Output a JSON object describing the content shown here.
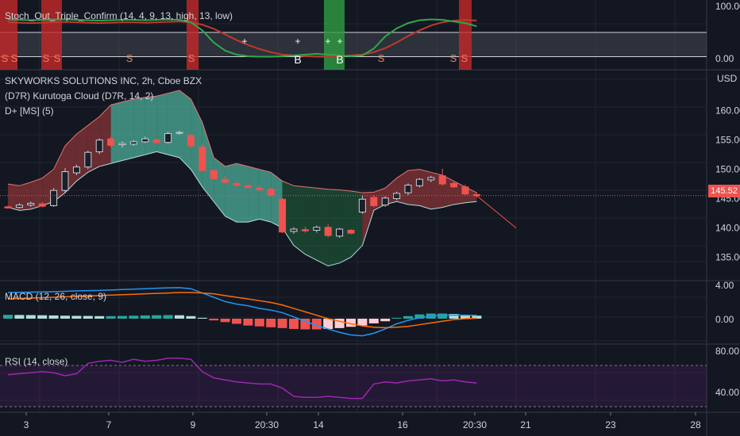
{
  "colors": {
    "background": "#131722",
    "grid": "#1f2430",
    "up": "#26a69a",
    "down": "#ef5350",
    "stoch_k": "#2ea84a",
    "stoch_d": "#c0392b",
    "macd_line": "#2196f3",
    "signal_line": "#ff6d00",
    "rsi": "#9c27b0",
    "cloud_bull": "#4caf99",
    "cloud_bear": "#a33a3a"
  },
  "main": {
    "title": "SKYWORKS SOLUTIONS INC, 2h, Cboe BZX",
    "indicator_1": "(D7R) Kurutoga Cloud (D7R, 14, 2)",
    "indicator_2": "D+ [MS] (5)",
    "currency": "USD",
    "last_price": "145.52"
  },
  "stoch_panel": {
    "title": "Stoch_Out_Triple_Confirm (14, 4, 9, 13, high, 13, low)",
    "y_ticks": [
      "100.00",
      "0.00"
    ],
    "sell_marks": [
      "S",
      "S",
      "S",
      "S",
      "S",
      "S",
      "S",
      "S",
      "S"
    ],
    "buy_marks": [
      "B",
      "B"
    ]
  },
  "macd_panel": {
    "title": "MACD (12, 26, close, 9)",
    "y_ticks": [
      "4.00",
      "0.00"
    ]
  },
  "rsi_panel": {
    "title": "RSI (14, close)",
    "y_ticks": [
      "80.00",
      "40.00"
    ]
  },
  "chart_data": {
    "type": "candlestick",
    "title": "SKYWORKS SOLUTIONS INC, 2h, Cboe BZX",
    "y_unit": "USD",
    "ylim": [
      131,
      167
    ],
    "y_ticks": [
      160,
      155,
      150,
      145,
      140,
      135
    ],
    "x_ticks": [
      "3",
      "7",
      "9",
      "20:30",
      "14",
      "16",
      "20:30",
      "21",
      "23",
      "28"
    ],
    "candles": [
      {
        "o": 143.6,
        "h": 143.8,
        "l": 143.3,
        "c": 143.4
      },
      {
        "o": 143.5,
        "h": 144.2,
        "l": 143.3,
        "c": 143.9
      },
      {
        "o": 143.9,
        "h": 144.5,
        "l": 143.6,
        "c": 144.2
      },
      {
        "o": 144.1,
        "h": 144.4,
        "l": 143.5,
        "c": 143.7
      },
      {
        "o": 143.8,
        "h": 146.8,
        "l": 143.6,
        "c": 146.4
      },
      {
        "o": 146.4,
        "h": 150.2,
        "l": 146.0,
        "c": 149.6
      },
      {
        "o": 149.4,
        "h": 150.8,
        "l": 149.0,
        "c": 150.4
      },
      {
        "o": 150.4,
        "h": 153.2,
        "l": 150.0,
        "c": 152.9
      },
      {
        "o": 153.0,
        "h": 155.3,
        "l": 152.6,
        "c": 155.0
      },
      {
        "o": 155.2,
        "h": 155.6,
        "l": 153.8,
        "c": 154.1
      },
      {
        "o": 154.2,
        "h": 154.8,
        "l": 153.7,
        "c": 154.4
      },
      {
        "o": 154.3,
        "h": 155.0,
        "l": 154.0,
        "c": 154.7
      },
      {
        "o": 154.7,
        "h": 155.6,
        "l": 154.5,
        "c": 155.2
      },
      {
        "o": 155.0,
        "h": 155.3,
        "l": 154.3,
        "c": 154.6
      },
      {
        "o": 154.6,
        "h": 156.4,
        "l": 154.4,
        "c": 156.1
      },
      {
        "o": 156.2,
        "h": 156.6,
        "l": 155.9,
        "c": 156.3
      },
      {
        "o": 155.8,
        "h": 156.0,
        "l": 153.7,
        "c": 154.0
      },
      {
        "o": 153.8,
        "h": 154.3,
        "l": 149.6,
        "c": 149.8
      },
      {
        "o": 149.8,
        "h": 150.0,
        "l": 148.2,
        "c": 148.4
      },
      {
        "o": 148.3,
        "h": 148.9,
        "l": 147.5,
        "c": 147.8
      },
      {
        "o": 147.6,
        "h": 148.0,
        "l": 147.0,
        "c": 147.3
      },
      {
        "o": 147.2,
        "h": 147.6,
        "l": 146.6,
        "c": 146.9
      },
      {
        "o": 146.8,
        "h": 147.3,
        "l": 146.2,
        "c": 146.5
      },
      {
        "o": 146.6,
        "h": 146.9,
        "l": 145.4,
        "c": 145.6
      },
      {
        "o": 144.9,
        "h": 145.1,
        "l": 139.1,
        "c": 139.3
      },
      {
        "o": 139.4,
        "h": 140.1,
        "l": 139.0,
        "c": 139.8
      },
      {
        "o": 139.7,
        "h": 140.2,
        "l": 139.2,
        "c": 139.5
      },
      {
        "o": 139.6,
        "h": 140.4,
        "l": 139.2,
        "c": 140.1
      },
      {
        "o": 140.1,
        "h": 140.6,
        "l": 138.4,
        "c": 138.7
      },
      {
        "o": 138.6,
        "h": 140.0,
        "l": 138.3,
        "c": 139.8
      },
      {
        "o": 139.6,
        "h": 139.8,
        "l": 138.9,
        "c": 139.1
      },
      {
        "o": 142.7,
        "h": 145.6,
        "l": 142.4,
        "c": 144.9
      },
      {
        "o": 145.2,
        "h": 145.6,
        "l": 143.5,
        "c": 143.8
      },
      {
        "o": 143.9,
        "h": 145.4,
        "l": 143.6,
        "c": 145.1
      },
      {
        "o": 145.0,
        "h": 146.2,
        "l": 144.7,
        "c": 145.9
      },
      {
        "o": 146.0,
        "h": 147.6,
        "l": 145.6,
        "c": 147.3
      },
      {
        "o": 147.2,
        "h": 148.5,
        "l": 146.9,
        "c": 148.3
      },
      {
        "o": 148.2,
        "h": 148.9,
        "l": 147.8,
        "c": 148.6
      },
      {
        "o": 148.9,
        "h": 150.1,
        "l": 147.2,
        "c": 147.5
      },
      {
        "o": 147.6,
        "h": 148.0,
        "l": 146.8,
        "c": 147.0
      },
      {
        "o": 147.0,
        "h": 147.4,
        "l": 145.6,
        "c": 145.8
      },
      {
        "o": 145.7,
        "h": 146.1,
        "l": 145.2,
        "c": 145.5
      }
    ],
    "cloud_upper": [
      147.5,
      147.2,
      147.8,
      148.5,
      150.0,
      154.0,
      156.0,
      157.5,
      159.0,
      161.0,
      161.5,
      162.0,
      162.3,
      162.5,
      163.0,
      163.5,
      162.0,
      158.0,
      152.0,
      150.5,
      151.0,
      150.5,
      150.0,
      149.5,
      148.0,
      147.2,
      147.0,
      146.8,
      146.6,
      146.5,
      146.3,
      146.0,
      146.1,
      146.8,
      148.5,
      149.8,
      150.0,
      149.5,
      149.0,
      148.0,
      147.0,
      146.0
    ],
    "cloud_lower": [
      143.5,
      143.0,
      143.2,
      143.8,
      144.5,
      146.0,
      148.0,
      149.5,
      150.5,
      151.0,
      151.5,
      152.0,
      152.5,
      153.0,
      152.5,
      152.0,
      150.0,
      147.0,
      144.5,
      142.0,
      141.0,
      141.0,
      141.5,
      141.0,
      140.0,
      137.0,
      135.5,
      134.5,
      133.5,
      134.0,
      135.0,
      137.0,
      143.0,
      144.0,
      144.5,
      144.0,
      143.8,
      143.2,
      143.5,
      144.0,
      144.3,
      144.5
    ],
    "macd": [
      3.05,
      3.08,
      3.1,
      3.12,
      3.15,
      3.2,
      3.25,
      3.28,
      3.3,
      3.35,
      3.4,
      3.45,
      3.5,
      3.55,
      3.6,
      3.62,
      3.5,
      3.0,
      2.5,
      2.0,
      1.7,
      1.5,
      1.2,
      1.0,
      0.7,
      0.2,
      -0.3,
      -0.8,
      -1.2,
      -1.6,
      -1.9,
      -2.0,
      -1.7,
      -1.2,
      -0.6,
      -0.2,
      0.1,
      0.3,
      0.4,
      0.42,
      0.4,
      0.38
    ],
    "signal": [
      2.3,
      2.35,
      2.4,
      2.45,
      2.5,
      2.55,
      2.6,
      2.65,
      2.7,
      2.75,
      2.8,
      2.85,
      2.9,
      2.95,
      3.0,
      3.05,
      3.05,
      3.0,
      2.9,
      2.7,
      2.5,
      2.3,
      2.1,
      1.9,
      1.6,
      1.2,
      0.8,
      0.4,
      0.0,
      -0.3,
      -0.6,
      -0.85,
      -1.0,
      -1.05,
      -1.0,
      -0.9,
      -0.7,
      -0.5,
      -0.3,
      -0.1,
      0.0,
      0.05
    ],
    "histogram": [
      0.45,
      0.43,
      0.42,
      0.4,
      0.38,
      0.35,
      0.33,
      0.32,
      0.3,
      0.3,
      0.32,
      0.35,
      0.38,
      0.4,
      0.42,
      0.4,
      0.3,
      0.1,
      -0.2,
      -0.4,
      -0.6,
      -0.8,
      -0.9,
      -1.0,
      -1.1,
      -1.2,
      -1.25,
      -1.25,
      -1.2,
      -1.1,
      -0.95,
      -0.8,
      -0.55,
      -0.3,
      0.1,
      0.3,
      0.5,
      0.6,
      0.6,
      0.55,
      0.45,
      0.35
    ],
    "rsi": [
      61,
      62,
      63,
      64,
      63,
      60,
      62,
      72,
      74,
      75,
      73,
      76,
      74,
      75,
      77,
      77,
      76,
      64,
      58,
      56,
      54,
      53,
      52,
      52,
      48,
      40,
      39,
      39,
      40,
      39,
      38,
      38,
      52,
      54,
      53,
      55,
      56,
      57,
      55,
      56,
      54,
      53
    ],
    "stoch_k": [
      97,
      96,
      95,
      96,
      97,
      97,
      96,
      95,
      94,
      95,
      96,
      96,
      95,
      96,
      97,
      96,
      90,
      70,
      40,
      20,
      10,
      6,
      5,
      5,
      6,
      8,
      10,
      12,
      10,
      8,
      6,
      8,
      25,
      55,
      75,
      88,
      95,
      97,
      96,
      92,
      88,
      80
    ],
    "stoch_d": [
      90,
      89,
      88,
      89,
      90,
      91,
      90,
      89,
      88,
      89,
      90,
      90,
      89,
      90,
      91,
      92,
      90,
      84,
      74,
      60,
      46,
      34,
      24,
      16,
      10,
      8,
      6,
      5,
      5,
      6,
      8,
      10,
      16,
      26,
      40,
      56,
      70,
      82,
      90,
      94,
      96,
      94
    ]
  }
}
